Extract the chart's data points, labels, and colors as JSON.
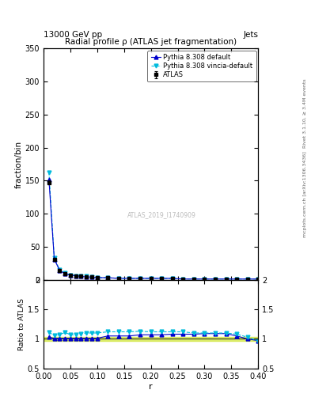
{
  "title": "Radial profile ρ (ATLAS jet fragmentation)",
  "top_left_label": "13000 GeV pp",
  "top_right_label": "Jets",
  "right_label_upper": "Rivet 3.1.10, ≥ 3.4M events",
  "right_label_lower": "mcplots.cern.ch [arXiv:1306.3436]",
  "watermark": "ATLAS_2019_I1740909",
  "ylabel_upper": "fraction/bin",
  "ylabel_lower": "Ratio to ATLAS",
  "xlabel": "r",
  "xlim": [
    0.0,
    0.4
  ],
  "ylim_upper": [
    0,
    350
  ],
  "ylim_lower": [
    0.5,
    2.0
  ],
  "yticks_upper": [
    0,
    50,
    100,
    150,
    200,
    250,
    300,
    350
  ],
  "yticks_lower": [
    0.5,
    1.0,
    1.5,
    2.0
  ],
  "r_values": [
    0.01,
    0.02,
    0.03,
    0.04,
    0.05,
    0.06,
    0.07,
    0.08,
    0.09,
    0.1,
    0.12,
    0.14,
    0.16,
    0.18,
    0.2,
    0.22,
    0.24,
    0.26,
    0.28,
    0.3,
    0.32,
    0.34,
    0.36,
    0.38,
    0.4
  ],
  "atlas_values": [
    147,
    31,
    14,
    9,
    7,
    6,
    5,
    4,
    4,
    3,
    3,
    2,
    2,
    2,
    2,
    2,
    2,
    1,
    1,
    1,
    1,
    1,
    1,
    1,
    1
  ],
  "atlas_errors": [
    3,
    1,
    0.5,
    0.4,
    0.3,
    0.3,
    0.3,
    0.2,
    0.2,
    0.2,
    0.1,
    0.1,
    0.1,
    0.1,
    0.1,
    0.1,
    0.1,
    0.1,
    0.1,
    0.1,
    0.1,
    0.1,
    0.1,
    0.1,
    0.1
  ],
  "pythia_default_values": [
    152,
    31,
    14,
    9,
    7,
    6,
    5,
    4,
    4,
    3,
    3,
    2,
    2,
    2,
    2,
    2,
    2,
    1,
    1,
    1,
    1,
    1,
    1,
    1,
    1
  ],
  "pythia_vincia_values": [
    163,
    33,
    15,
    10,
    7,
    6,
    5,
    5,
    4,
    3,
    3,
    2,
    2,
    2,
    2,
    2,
    2,
    1,
    1,
    1,
    1,
    1,
    1,
    1,
    1
  ],
  "ratio_pythia_default": [
    1.03,
    1.01,
    1.01,
    1.01,
    1.01,
    1.01,
    1.01,
    1.01,
    1.01,
    1.01,
    1.05,
    1.05,
    1.05,
    1.07,
    1.07,
    1.07,
    1.08,
    1.08,
    1.08,
    1.09,
    1.09,
    1.09,
    1.05,
    1.0,
    0.97
  ],
  "ratio_pythia_vincia": [
    1.11,
    1.06,
    1.07,
    1.11,
    1.07,
    1.07,
    1.09,
    1.1,
    1.1,
    1.1,
    1.12,
    1.12,
    1.12,
    1.13,
    1.12,
    1.12,
    1.12,
    1.12,
    1.1,
    1.1,
    1.1,
    1.1,
    1.08,
    1.03,
    0.97
  ],
  "atlas_color": "#000000",
  "pythia_default_color": "#0000cc",
  "pythia_vincia_color": "#00bbdd",
  "atlas_band_color": "#d4e84a",
  "atlas_band_alpha": 0.8,
  "band_low": 0.97,
  "band_high": 1.03
}
